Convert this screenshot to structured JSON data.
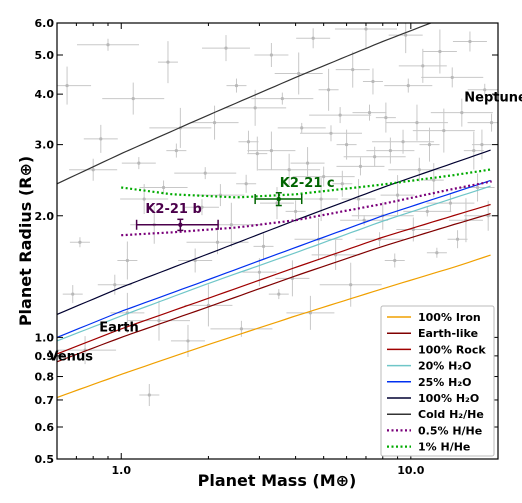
{
  "chart_data": {
    "type": "line",
    "xlabel": "Planet Mass (M⊕)",
    "ylabel": "Planet Radius (R⊕)",
    "xscale": "log",
    "yscale": "log",
    "xlim": [
      0.6,
      20
    ],
    "ylim": [
      0.5,
      6.0
    ],
    "xticks": [
      {
        "value": 1.0,
        "label": "1.0"
      },
      {
        "value": 10.0,
        "label": "10.0"
      }
    ],
    "yticks": [
      {
        "value": 0.5,
        "label": "0.5"
      },
      {
        "value": 0.6,
        "label": "0.6"
      },
      {
        "value": 0.7,
        "label": "0.7"
      },
      {
        "value": 0.8,
        "label": "0.8"
      },
      {
        "value": 0.9,
        "label": "0.9"
      },
      {
        "value": 1.0,
        "label": "1.0"
      },
      {
        "value": 2.0,
        "label": "2.0"
      },
      {
        "value": 3.0,
        "label": "3.0"
      },
      {
        "value": 4.0,
        "label": "4.0"
      },
      {
        "value": 5.0,
        "label": "5.0"
      },
      {
        "value": 6.0,
        "label": "6.0"
      }
    ],
    "legend_position": "lower-right",
    "series": [
      {
        "name": "100% Iron",
        "color": "#f0a000",
        "style": "solid",
        "x": [
          0.6,
          1,
          2,
          4,
          8,
          14,
          20
        ],
        "y": [
          0.71,
          0.81,
          0.96,
          1.13,
          1.32,
          1.49,
          1.62
        ]
      },
      {
        "name": "Earth-like",
        "color": "#800000",
        "style": "solid",
        "x": [
          0.6,
          1,
          2,
          4,
          8,
          14,
          20
        ],
        "y": [
          0.87,
          1.0,
          1.19,
          1.42,
          1.68,
          1.9,
          2.05
        ]
      },
      {
        "name": "100% Rock",
        "color": "#a00000",
        "style": "solid",
        "x": [
          0.6,
          1,
          2,
          4,
          8,
          14,
          20
        ],
        "y": [
          0.91,
          1.05,
          1.25,
          1.49,
          1.77,
          2.0,
          2.16
        ]
      },
      {
        "name": "20% H₂O",
        "color": "#6fc6c8",
        "style": "solid",
        "x": [
          0.6,
          1,
          2,
          4,
          8,
          14,
          20
        ],
        "y": [
          0.98,
          1.13,
          1.36,
          1.62,
          1.94,
          2.21,
          2.4
        ]
      },
      {
        "name": "25% H₂O",
        "color": "#0030f0",
        "style": "solid",
        "x": [
          0.6,
          1,
          2,
          4,
          8,
          14,
          20
        ],
        "y": [
          1.0,
          1.16,
          1.39,
          1.67,
          2.0,
          2.28,
          2.48
        ]
      },
      {
        "name": "100% H₂O",
        "color": "#000030",
        "style": "solid",
        "x": [
          0.6,
          1,
          2,
          4,
          8,
          14,
          20
        ],
        "y": [
          1.14,
          1.33,
          1.61,
          1.95,
          2.35,
          2.7,
          2.95
        ]
      },
      {
        "name": "Cold H₂/He",
        "color": "#333333",
        "style": "solid",
        "x": [
          0.6,
          1,
          2,
          4,
          8,
          14
        ],
        "y": [
          2.4,
          2.85,
          3.55,
          4.4,
          5.4,
          6.3
        ]
      },
      {
        "name": "0.5% H/He",
        "color": "#7a007a",
        "style": "dotted",
        "x": [
          1.0,
          1.5,
          2.5,
          4,
          8,
          14,
          20
        ],
        "y": [
          1.79,
          1.82,
          1.87,
          1.95,
          2.14,
          2.33,
          2.45
        ]
      },
      {
        "name": "1% H/He",
        "color": "#00aa00",
        "style": "dotted",
        "x": [
          1.0,
          1.5,
          2.5,
          4,
          8,
          14,
          20
        ],
        "y": [
          2.35,
          2.26,
          2.22,
          2.26,
          2.39,
          2.52,
          2.62
        ]
      }
    ],
    "planets": [
      {
        "name": "K2-21 b",
        "color": "#4b004b",
        "mass": 1.6,
        "mass_err": [
          0.47,
          0.56
        ],
        "radius": 1.9,
        "radius_err": [
          0.06,
          0.06
        ]
      },
      {
        "name": "K2-21 c",
        "color": "#006400",
        "mass": 3.5,
        "mass_err": [
          0.6,
          0.7
        ],
        "radius": 2.2,
        "radius_err": [
          0.08,
          0.08
        ]
      }
    ],
    "reference_labels": [
      {
        "text": "Earth",
        "mass": 1.0,
        "radius": 1.0
      },
      {
        "text": "Venus",
        "mass": 0.815,
        "radius": 0.95
      },
      {
        "text": "Neptune",
        "mass": 17.1,
        "radius": 3.88
      }
    ],
    "background_points": [
      [
        0.72,
        1.72
      ],
      [
        0.95,
        1.35
      ],
      [
        1.2,
        2.2
      ],
      [
        1.35,
        1.1
      ],
      [
        1.55,
        2.9
      ],
      [
        1.8,
        1.55
      ],
      [
        2.1,
        3.4
      ],
      [
        2.4,
        1.9
      ],
      [
        2.7,
        2.4
      ],
      [
        3.0,
        1.45
      ],
      [
        3.3,
        2.9
      ],
      [
        3.6,
        3.9
      ],
      [
        4.0,
        2.05
      ],
      [
        4.4,
        2.7
      ],
      [
        4.8,
        1.75
      ],
      [
        5.3,
        3.2
      ],
      [
        5.8,
        2.4
      ],
      [
        6.3,
        4.6
      ],
      [
        6.9,
        1.95
      ],
      [
        7.5,
        2.8
      ],
      [
        8.2,
        3.5
      ],
      [
        9.0,
        2.25
      ],
      [
        9.8,
        4.2
      ],
      [
        10.7,
        2.6
      ],
      [
        11.6,
        3.0
      ],
      [
        12.6,
        5.1
      ],
      [
        13.7,
        2.15
      ],
      [
        15.0,
        3.6
      ],
      [
        16.5,
        2.9
      ],
      [
        18.0,
        4.1
      ],
      [
        0.8,
        2.6
      ],
      [
        1.1,
        3.9
      ],
      [
        1.45,
        4.8
      ],
      [
        1.9,
        2.1
      ],
      [
        2.3,
        5.2
      ],
      [
        2.9,
        3.7
      ],
      [
        3.5,
        1.28
      ],
      [
        4.6,
        5.5
      ],
      [
        5.5,
        1.6
      ],
      [
        7.0,
        5.8
      ],
      [
        8.8,
        1.55
      ],
      [
        10.2,
        1.85
      ],
      [
        11.0,
        4.7
      ],
      [
        13.0,
        3.25
      ],
      [
        14.5,
        1.75
      ],
      [
        17.0,
        2.35
      ],
      [
        0.65,
        4.2
      ],
      [
        0.9,
        5.3
      ],
      [
        1.25,
        0.72
      ],
      [
        1.7,
        0.98
      ],
      [
        2.0,
        1.2
      ],
      [
        2.6,
        1.05
      ],
      [
        3.1,
        1.68
      ],
      [
        3.9,
        1.4
      ],
      [
        4.2,
        3.3
      ],
      [
        5.0,
        2.5
      ],
      [
        6.0,
        3.0
      ],
      [
        6.6,
        2.2
      ],
      [
        7.8,
        1.75
      ],
      [
        9.4,
        3.05
      ],
      [
        12.0,
        2.45
      ],
      [
        15.5,
        1.95
      ],
      [
        19.0,
        3.4
      ],
      [
        0.75,
        0.93
      ],
      [
        1.05,
        1.55
      ],
      [
        1.15,
        2.7
      ],
      [
        2.2,
        2.25
      ],
      [
        3.8,
        2.6
      ],
      [
        5.2,
        4.1
      ],
      [
        7.2,
        3.6
      ],
      [
        8.5,
        2.9
      ],
      [
        10.5,
        3.4
      ],
      [
        12.3,
        1.62
      ],
      [
        16.0,
        5.4
      ],
      [
        18.5,
        2.0
      ],
      [
        1.6,
        3.3
      ],
      [
        2.5,
        4.2
      ],
      [
        3.3,
        5.0
      ],
      [
        4.5,
        1.15
      ],
      [
        6.2,
        1.35
      ],
      [
        0.68,
        1.28
      ],
      [
        0.85,
        3.1
      ],
      [
        1.3,
        1.9
      ],
      [
        1.95,
        2.55
      ],
      [
        2.75,
        3.05
      ],
      [
        3.45,
        2.15
      ],
      [
        4.1,
        4.5
      ],
      [
        5.7,
        3.55
      ],
      [
        7.4,
        4.3
      ],
      [
        9.6,
        5.6
      ],
      [
        11.4,
        2.05
      ],
      [
        13.9,
        4.4
      ],
      [
        17.6,
        3.0
      ],
      [
        1.05,
        1.15
      ],
      [
        1.4,
        2.35
      ],
      [
        2.15,
        1.72
      ],
      [
        2.95,
        2.85
      ],
      [
        4.9,
        2.2
      ],
      [
        6.7,
        2.65
      ],
      [
        8.0,
        2.0
      ]
    ]
  }
}
